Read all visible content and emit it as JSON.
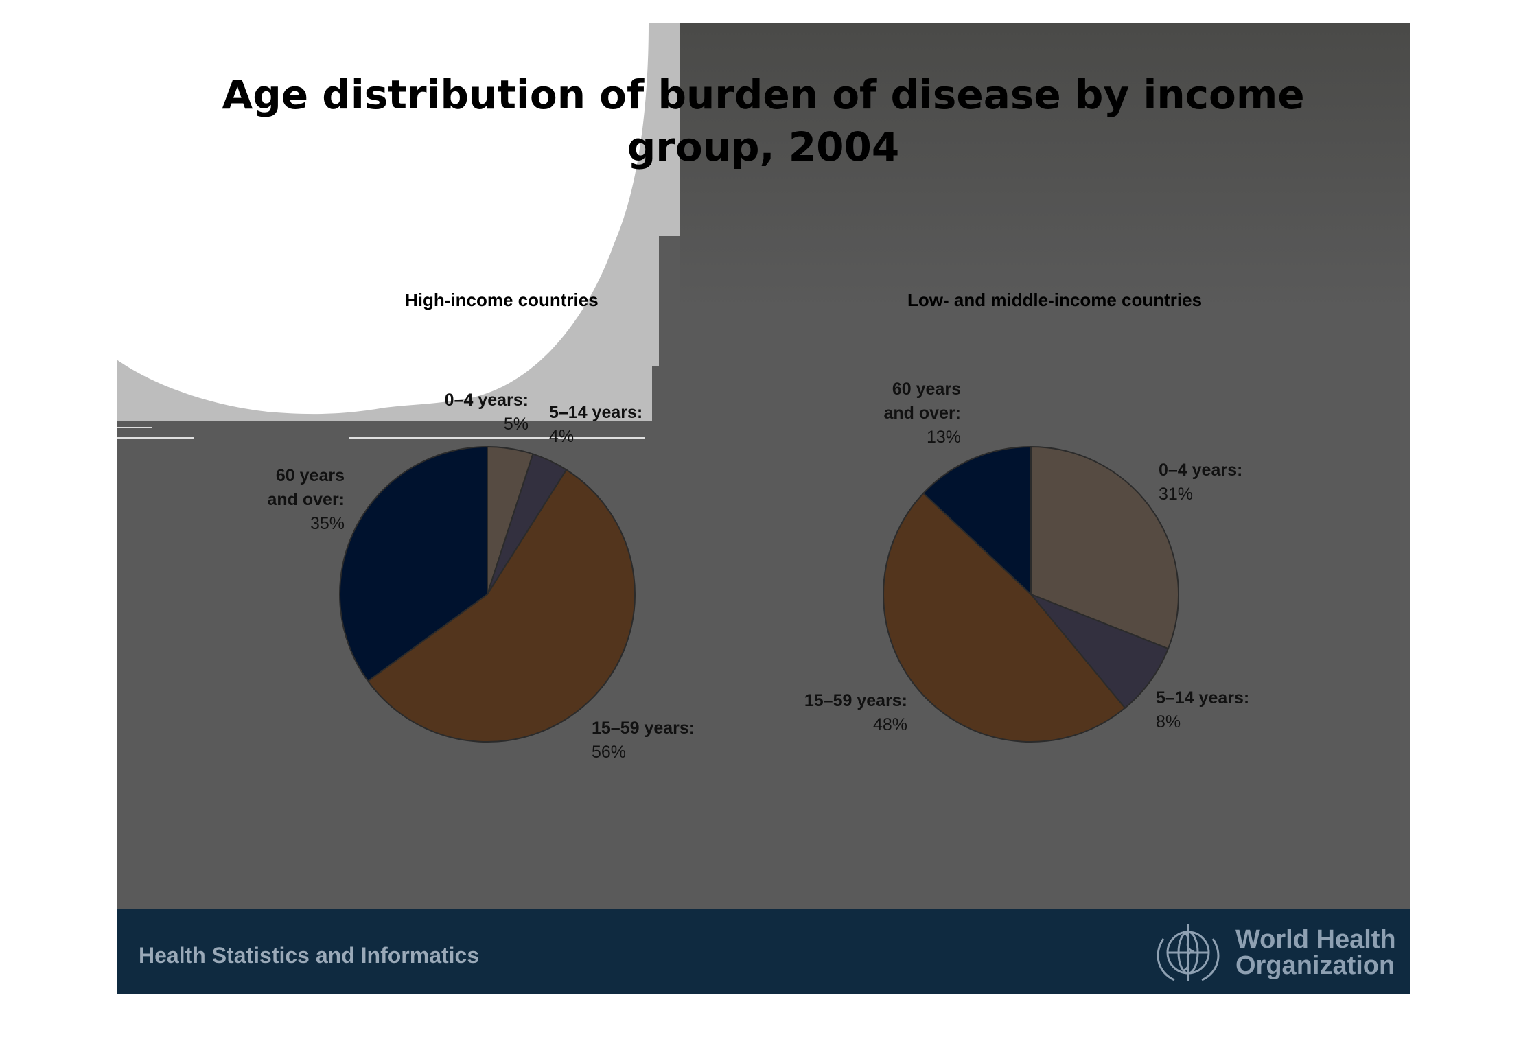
{
  "slide": {
    "title_line1": "Age distribution of burden of disease by income",
    "title_line2": "group, 2004",
    "footer_text": "Health Statistics and Informatics",
    "org_line1": "World Health",
    "org_line2": "Organization"
  },
  "colors": {
    "slide_bg": "#5a5a5a",
    "footer_bg": "#0f2a40",
    "age_0_4": "#564b42",
    "age_5_14": "#33303f",
    "age_15_59": "#53351d",
    "age_60_plus": "#00122e"
  },
  "chart_data": [
    {
      "type": "pie",
      "title": "High-income countries",
      "slices": [
        {
          "name_line1": "0–4 years:",
          "name_line2": "",
          "value": 5,
          "value_label": "5%",
          "color": "#564b42"
        },
        {
          "name_line1": "5–14 years:",
          "name_line2": "",
          "value": 4,
          "value_label": "4%",
          "color": "#33303f"
        },
        {
          "name_line1": "15–59 years:",
          "name_line2": "",
          "value": 56,
          "value_label": "56%",
          "color": "#53351d"
        },
        {
          "name_line1": "60 years",
          "name_line2": "and over:",
          "value": 35,
          "value_label": "35%",
          "color": "#00122e"
        }
      ]
    },
    {
      "type": "pie",
      "title": "Low- and middle-income countries",
      "slices": [
        {
          "name_line1": "0–4 years:",
          "name_line2": "",
          "value": 31,
          "value_label": "31%",
          "color": "#564b42"
        },
        {
          "name_line1": "5–14 years:",
          "name_line2": "",
          "value": 8,
          "value_label": "8%",
          "color": "#33303f"
        },
        {
          "name_line1": "15–59 years:",
          "name_line2": "",
          "value": 48,
          "value_label": "48%",
          "color": "#53351d"
        },
        {
          "name_line1": "60 years",
          "name_line2": "and over:",
          "value": 13,
          "value_label": "13%",
          "color": "#00122e"
        }
      ]
    }
  ]
}
